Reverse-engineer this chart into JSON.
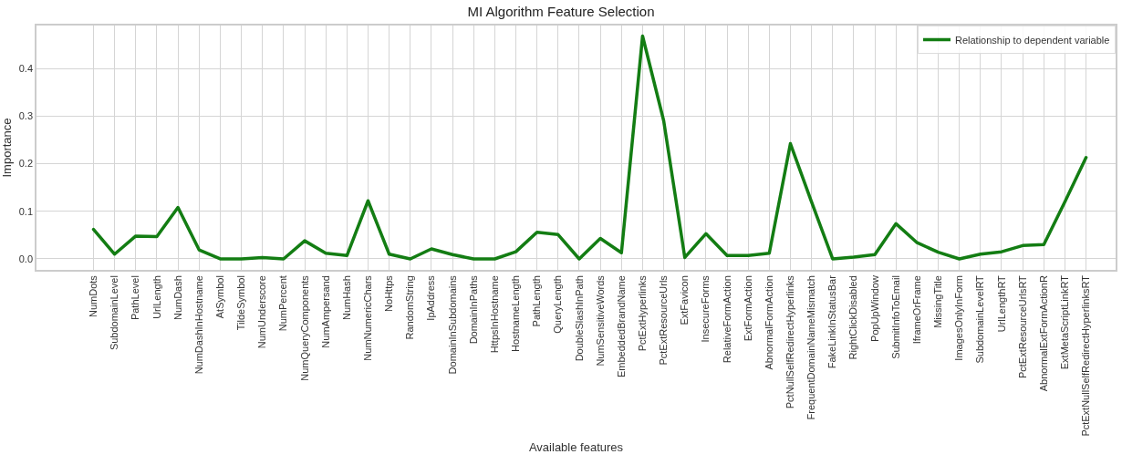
{
  "chart_data": {
    "type": "line",
    "title": "MI Algorithm Feature Selection",
    "xlabel": "Available features",
    "ylabel": "Importance",
    "categories": [
      "NumDots",
      "SubdomainLevel",
      "PathLevel",
      "UrlLength",
      "NumDash",
      "NumDashInHostname",
      "AtSymbol",
      "TildeSymbol",
      "NumUnderscore",
      "NumPercent",
      "NumQueryComponents",
      "NumAmpersand",
      "NumHash",
      "NumNumericChars",
      "NoHttps",
      "RandomString",
      "IpAddress",
      "DomainInSubdomains",
      "DomainInPaths",
      "HttpsInHostname",
      "HostnameLength",
      "PathLength",
      "QueryLength",
      "DoubleSlashInPath",
      "NumSensitiveWords",
      "EmbeddedBrandName",
      "PctExtHyperlinks",
      "PctExtResourceUrls",
      "ExtFavicon",
      "InsecureForms",
      "RelativeFormAction",
      "ExtFormAction",
      "AbnormalFormAction",
      "PctNullSelfRedirectHyperlinks",
      "FrequentDomainNameMismatch",
      "FakeLinkInStatusBar",
      "RightClickDisabled",
      "PopUpWindow",
      "SubmitInfoToEmail",
      "IframeOrFrame",
      "MissingTitle",
      "ImagesOnlyInForm",
      "SubdomainLevelRT",
      "UrlLengthRT",
      "PctExtResourceUrlsRT",
      "AbnormalExtFormActionR",
      "ExtMetaScriptLinkRT",
      "PctExtNullSelfRedirectHyperlinksRT"
    ],
    "series": [
      {
        "name": "Relationship to dependent variable",
        "color": "#137d13",
        "values": [
          0.062,
          0.01,
          0.048,
          0.047,
          0.108,
          0.019,
          0.0,
          0.0,
          0.003,
          0.0,
          0.038,
          0.012,
          0.007,
          0.122,
          0.01,
          0.0,
          0.021,
          0.009,
          0.0,
          0.0,
          0.015,
          0.056,
          0.051,
          0.0,
          0.043,
          0.013,
          0.468,
          0.29,
          0.003,
          0.053,
          0.007,
          0.007,
          0.012,
          0.242,
          0.12,
          0.0,
          0.004,
          0.009,
          0.074,
          0.034,
          0.014,
          0.0,
          0.01,
          0.015,
          0.028,
          0.03,
          0.12,
          0.213
        ]
      }
    ],
    "ylim": [
      -0.023,
      0.49
    ],
    "yticks": [
      {
        "value": 0,
        "label": "0.0"
      },
      {
        "value": 0.1,
        "label": "0.1"
      },
      {
        "value": 0.2,
        "label": "0.2"
      },
      {
        "value": 0.3,
        "label": "0.3"
      },
      {
        "value": 0.4,
        "label": "0.4"
      }
    ],
    "grid": true,
    "legend": "top right",
    "marker": "none",
    "line_style": "solid"
  }
}
